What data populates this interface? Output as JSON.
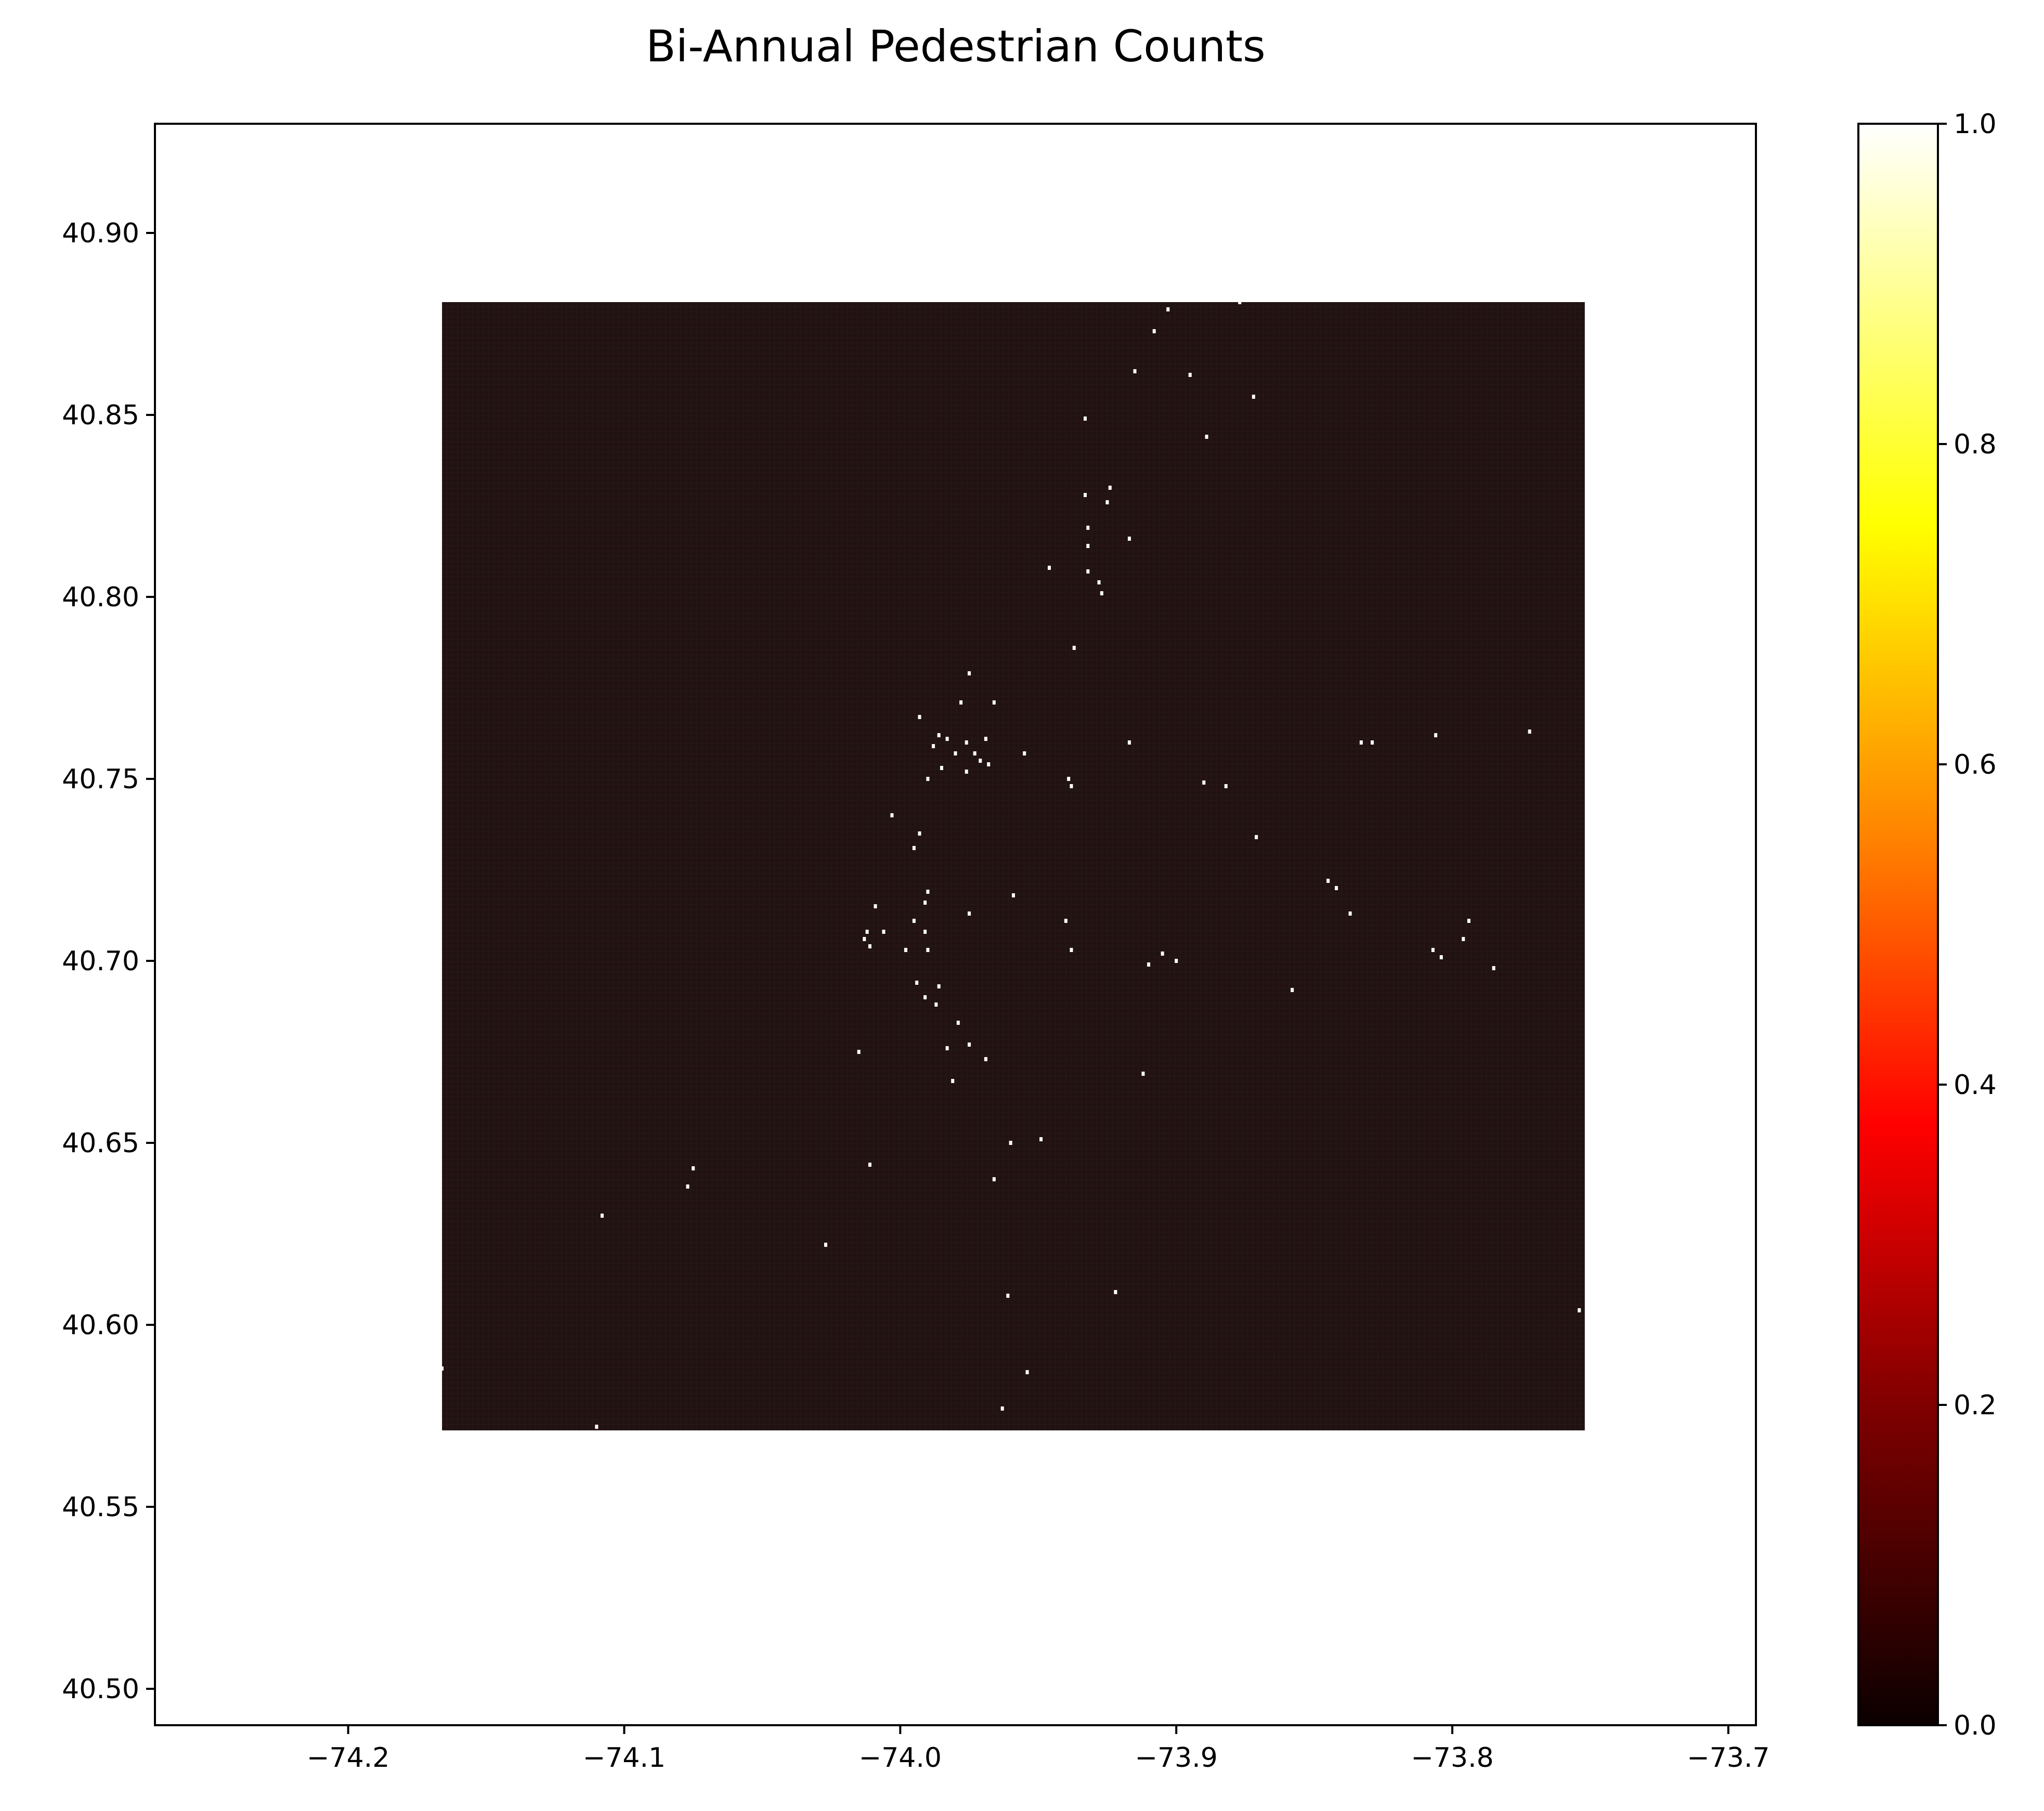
{
  "chart_data": {
    "type": "heatmap",
    "title": "Bi-Annual Pedestrian Counts",
    "xlabel": "",
    "ylabel": "",
    "xlim": [
      -74.27,
      -73.69
    ],
    "ylim": [
      40.49,
      40.93
    ],
    "x_ticks": [
      -74.2,
      -74.1,
      -74.0,
      -73.9,
      -73.8,
      -73.7
    ],
    "x_tick_labels": [
      "−74.2",
      "−74.1",
      "−74.0",
      "−73.9",
      "−73.8",
      "−73.7"
    ],
    "y_ticks": [
      40.5,
      40.55,
      40.6,
      40.65,
      40.7,
      40.75,
      40.8,
      40.85,
      40.9
    ],
    "y_tick_labels": [
      "40.50",
      "40.55",
      "40.60",
      "40.65",
      "40.70",
      "40.75",
      "40.80",
      "40.85",
      "40.90"
    ],
    "grid": false,
    "legend": "none",
    "grid_region": {
      "x_min": -74.166,
      "x_max": -73.752,
      "y_min": 40.571,
      "y_max": 40.881
    },
    "background_value": 0.04,
    "colorbar": {
      "colormap": "hot",
      "range": [
        0.0,
        1.0
      ],
      "ticks": [
        0.0,
        0.2,
        0.4,
        0.6,
        0.8,
        1.0
      ],
      "tick_labels": [
        "0.0",
        "0.2",
        "0.4",
        "0.6",
        "0.8",
        "1.0"
      ],
      "colors": [
        "#0b0000",
        "#800000",
        "#ff0000",
        "#ff8000",
        "#ffff00",
        "#ffffff"
      ]
    },
    "hotspots": [
      {
        "lon": -73.903,
        "lat": 40.879
      },
      {
        "lon": -73.877,
        "lat": 40.881
      },
      {
        "lon": -73.908,
        "lat": 40.873
      },
      {
        "lon": -73.915,
        "lat": 40.862
      },
      {
        "lon": -73.895,
        "lat": 40.861
      },
      {
        "lon": -73.872,
        "lat": 40.855
      },
      {
        "lon": -73.933,
        "lat": 40.849
      },
      {
        "lon": -73.889,
        "lat": 40.844
      },
      {
        "lon": -73.933,
        "lat": 40.828
      },
      {
        "lon": -73.924,
        "lat": 40.83
      },
      {
        "lon": -73.925,
        "lat": 40.826
      },
      {
        "lon": -73.932,
        "lat": 40.819
      },
      {
        "lon": -73.917,
        "lat": 40.816
      },
      {
        "lon": -73.932,
        "lat": 40.814
      },
      {
        "lon": -73.946,
        "lat": 40.808
      },
      {
        "lon": -73.932,
        "lat": 40.807
      },
      {
        "lon": -73.928,
        "lat": 40.804
      },
      {
        "lon": -73.927,
        "lat": 40.801
      },
      {
        "lon": -73.937,
        "lat": 40.786
      },
      {
        "lon": -73.975,
        "lat": 40.779
      },
      {
        "lon": -73.978,
        "lat": 40.771
      },
      {
        "lon": -73.966,
        "lat": 40.771
      },
      {
        "lon": -73.993,
        "lat": 40.767
      },
      {
        "lon": -73.986,
        "lat": 40.762
      },
      {
        "lon": -73.983,
        "lat": 40.761
      },
      {
        "lon": -73.988,
        "lat": 40.759
      },
      {
        "lon": -73.98,
        "lat": 40.757
      },
      {
        "lon": -73.976,
        "lat": 40.76
      },
      {
        "lon": -73.973,
        "lat": 40.757
      },
      {
        "lon": -73.971,
        "lat": 40.755
      },
      {
        "lon": -73.969,
        "lat": 40.761
      },
      {
        "lon": -73.968,
        "lat": 40.754
      },
      {
        "lon": -73.985,
        "lat": 40.753
      },
      {
        "lon": -73.976,
        "lat": 40.752
      },
      {
        "lon": -73.955,
        "lat": 40.757
      },
      {
        "lon": -73.939,
        "lat": 40.75
      },
      {
        "lon": -73.938,
        "lat": 40.748
      },
      {
        "lon": -73.99,
        "lat": 40.75
      },
      {
        "lon": -73.917,
        "lat": 40.76
      },
      {
        "lon": -73.89,
        "lat": 40.749
      },
      {
        "lon": -73.882,
        "lat": 40.748
      },
      {
        "lon": -73.833,
        "lat": 40.76
      },
      {
        "lon": -73.829,
        "lat": 40.76
      },
      {
        "lon": -73.806,
        "lat": 40.762
      },
      {
        "lon": -73.772,
        "lat": 40.763
      },
      {
        "lon": -74.003,
        "lat": 40.74
      },
      {
        "lon": -73.993,
        "lat": 40.735
      },
      {
        "lon": -73.995,
        "lat": 40.731
      },
      {
        "lon": -73.871,
        "lat": 40.734
      },
      {
        "lon": -73.845,
        "lat": 40.722
      },
      {
        "lon": -73.842,
        "lat": 40.72
      },
      {
        "lon": -73.99,
        "lat": 40.719
      },
      {
        "lon": -73.991,
        "lat": 40.716
      },
      {
        "lon": -74.009,
        "lat": 40.715
      },
      {
        "lon": -73.959,
        "lat": 40.718
      },
      {
        "lon": -73.995,
        "lat": 40.711
      },
      {
        "lon": -73.975,
        "lat": 40.713
      },
      {
        "lon": -73.94,
        "lat": 40.711
      },
      {
        "lon": -73.837,
        "lat": 40.713
      },
      {
        "lon": -73.794,
        "lat": 40.711
      },
      {
        "lon": -73.796,
        "lat": 40.706
      },
      {
        "lon": -74.012,
        "lat": 40.708
      },
      {
        "lon": -74.013,
        "lat": 40.706
      },
      {
        "lon": -74.006,
        "lat": 40.708
      },
      {
        "lon": -74.011,
        "lat": 40.704
      },
      {
        "lon": -73.998,
        "lat": 40.703
      },
      {
        "lon": -73.991,
        "lat": 40.708
      },
      {
        "lon": -73.99,
        "lat": 40.703
      },
      {
        "lon": -73.938,
        "lat": 40.703
      },
      {
        "lon": -73.905,
        "lat": 40.702
      },
      {
        "lon": -73.807,
        "lat": 40.703
      },
      {
        "lon": -73.804,
        "lat": 40.701
      },
      {
        "lon": -73.9,
        "lat": 40.7
      },
      {
        "lon": -73.91,
        "lat": 40.699
      },
      {
        "lon": -73.785,
        "lat": 40.698
      },
      {
        "lon": -73.858,
        "lat": 40.692
      },
      {
        "lon": -73.994,
        "lat": 40.694
      },
      {
        "lon": -73.986,
        "lat": 40.693
      },
      {
        "lon": -73.991,
        "lat": 40.69
      },
      {
        "lon": -73.987,
        "lat": 40.688
      },
      {
        "lon": -73.979,
        "lat": 40.683
      },
      {
        "lon": -73.975,
        "lat": 40.677
      },
      {
        "lon": -74.015,
        "lat": 40.675
      },
      {
        "lon": -73.983,
        "lat": 40.676
      },
      {
        "lon": -73.969,
        "lat": 40.673
      },
      {
        "lon": -73.912,
        "lat": 40.669
      },
      {
        "lon": -73.981,
        "lat": 40.667
      },
      {
        "lon": -73.96,
        "lat": 40.65
      },
      {
        "lon": -73.949,
        "lat": 40.651
      },
      {
        "lon": -74.011,
        "lat": 40.644
      },
      {
        "lon": -74.075,
        "lat": 40.643
      },
      {
        "lon": -74.077,
        "lat": 40.638
      },
      {
        "lon": -73.966,
        "lat": 40.64
      },
      {
        "lon": -74.108,
        "lat": 40.63
      },
      {
        "lon": -74.027,
        "lat": 40.622
      },
      {
        "lon": -73.961,
        "lat": 40.608
      },
      {
        "lon": -73.922,
        "lat": 40.609
      },
      {
        "lon": -73.754,
        "lat": 40.604
      },
      {
        "lon": -74.166,
        "lat": 40.588
      },
      {
        "lon": -73.954,
        "lat": 40.587
      },
      {
        "lon": -73.963,
        "lat": 40.577
      },
      {
        "lon": -74.11,
        "lat": 40.572
      }
    ]
  }
}
